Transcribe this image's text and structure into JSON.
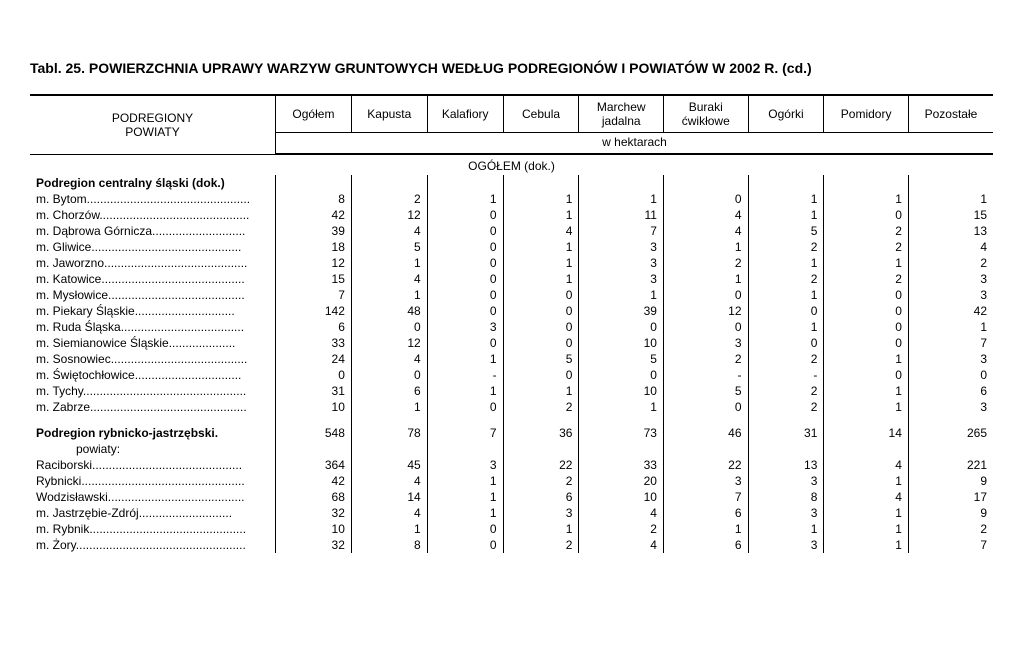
{
  "title": "Tabl. 25. POWIERZCHNIA UPRAWY WARZYW GRUNTOWYCH WEDŁUG PODREGIONÓW I POWIATÓW W 2002 R. (cd.)",
  "columns": {
    "rowhead": "PODREGIONY\nPOWIATY",
    "c1": "Ogółem",
    "c2": "Kapusta",
    "c3": "Kalafiory",
    "c4": "Cebula",
    "c5": "Marchew jadalna",
    "c6": "Buraki ćwikłowe",
    "c7": "Ogórki",
    "c8": "Pomidory",
    "c9": "Pozostałe"
  },
  "unit_label": "w hektarach",
  "section_header": "OGÓŁEM (dok.)",
  "section1": "Podregion centralny śląski (dok.)",
  "rows1": [
    {
      "label": "m. Bytom",
      "v": [
        "8",
        "2",
        "1",
        "1",
        "1",
        "0",
        "1",
        "1",
        "1"
      ]
    },
    {
      "label": "m. Chorzów",
      "v": [
        "42",
        "12",
        "0",
        "1",
        "11",
        "4",
        "1",
        "0",
        "15"
      ]
    },
    {
      "label": "m. Dąbrowa Górnicza",
      "v": [
        "39",
        "4",
        "0",
        "4",
        "7",
        "4",
        "5",
        "2",
        "13"
      ]
    },
    {
      "label": "m. Gliwice",
      "v": [
        "18",
        "5",
        "0",
        "1",
        "3",
        "1",
        "2",
        "2",
        "4"
      ]
    },
    {
      "label": "m. Jaworzno",
      "v": [
        "12",
        "1",
        "0",
        "1",
        "3",
        "2",
        "1",
        "1",
        "2"
      ]
    },
    {
      "label": "m. Katowice",
      "v": [
        "15",
        "4",
        "0",
        "1",
        "3",
        "1",
        "2",
        "2",
        "3"
      ]
    },
    {
      "label": "m. Mysłowice",
      "v": [
        "7",
        "1",
        "0",
        "0",
        "1",
        "0",
        "1",
        "0",
        "3"
      ]
    },
    {
      "label": "m. Piekary Śląskie",
      "v": [
        "142",
        "48",
        "0",
        "0",
        "39",
        "12",
        "0",
        "0",
        "42"
      ]
    },
    {
      "label": "m. Ruda Śląska",
      "v": [
        "6",
        "0",
        "3",
        "0",
        "0",
        "0",
        "1",
        "0",
        "1"
      ]
    },
    {
      "label": "m. Siemianowice Śląskie",
      "v": [
        "33",
        "12",
        "0",
        "0",
        "10",
        "3",
        "0",
        "0",
        "7"
      ]
    },
    {
      "label": "m. Sosnowiec",
      "v": [
        "24",
        "4",
        "1",
        "5",
        "5",
        "2",
        "2",
        "1",
        "3"
      ]
    },
    {
      "label": "m. Świętochłowice",
      "v": [
        "0",
        "0",
        "-",
        "0",
        "0",
        "-",
        "-",
        "0",
        "0"
      ]
    },
    {
      "label": "m. Tychy",
      "v": [
        "31",
        "6",
        "1",
        "1",
        "10",
        "5",
        "2",
        "1",
        "6"
      ]
    },
    {
      "label": "m. Zabrze",
      "v": [
        "10",
        "1",
        "0",
        "2",
        "1",
        "0",
        "2",
        "1",
        "3"
      ]
    }
  ],
  "section2": "Podregion rybnicko-jastrzębski",
  "section2_values": [
    "548",
    "78",
    "7",
    "36",
    "73",
    "46",
    "31",
    "14",
    "265"
  ],
  "powiaty_label": "powiaty:",
  "rows2": [
    {
      "label": "Raciborski",
      "v": [
        "364",
        "45",
        "3",
        "22",
        "33",
        "22",
        "13",
        "4",
        "221"
      ]
    },
    {
      "label": "Rybnicki",
      "v": [
        "42",
        "4",
        "1",
        "2",
        "20",
        "3",
        "3",
        "1",
        "9"
      ]
    },
    {
      "label": "Wodzisławski",
      "v": [
        "68",
        "14",
        "1",
        "6",
        "10",
        "7",
        "8",
        "4",
        "17"
      ]
    },
    {
      "label": "m. Jastrzębie-Zdrój",
      "v": [
        "32",
        "4",
        "1",
        "3",
        "4",
        "6",
        "3",
        "1",
        "9"
      ]
    },
    {
      "label": "m. Rybnik",
      "v": [
        "10",
        "1",
        "0",
        "1",
        "2",
        "1",
        "1",
        "1",
        "2"
      ]
    },
    {
      "label": "m. Żory",
      "v": [
        "32",
        "8",
        "0",
        "2",
        "4",
        "6",
        "3",
        "1",
        "7"
      ]
    }
  ],
  "col_widths": [
    "220",
    "70",
    "70",
    "70",
    "70",
    "78",
    "78",
    "70",
    "78",
    "78"
  ],
  "label_col_inner_width": 208
}
